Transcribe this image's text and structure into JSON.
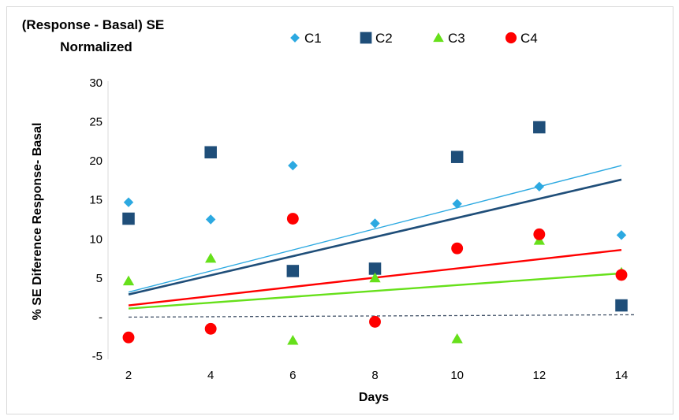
{
  "chart_data": {
    "type": "scatter",
    "title": "(Response - Basal) SE Normalized",
    "title_lines": [
      "(Response - Basal) SE",
      "Normalized"
    ],
    "xlabel": "Days",
    "ylabel": "% SE Diference Response- Basal",
    "xlim": [
      2,
      14
    ],
    "ylim": [
      -5,
      30
    ],
    "x_ticks": [
      2,
      4,
      6,
      8,
      10,
      12,
      14
    ],
    "y_ticks": [
      {
        "value": 30,
        "label": "30"
      },
      {
        "value": 25,
        "label": "25"
      },
      {
        "value": 20,
        "label": "20"
      },
      {
        "value": 15,
        "label": "15"
      },
      {
        "value": 10,
        "label": "10"
      },
      {
        "value": 5,
        "label": "5"
      },
      {
        "value": 0,
        "label": "-"
      },
      {
        "value": -5,
        "label": "-5"
      }
    ],
    "grid": false,
    "legend_position": "top",
    "baseline": {
      "y": 0,
      "style": "dashed",
      "color": "#44546a"
    },
    "series": [
      {
        "name": "C1",
        "marker": "diamond",
        "color": "#2ca9e1",
        "x": [
          2,
          4,
          6,
          8,
          10,
          12,
          14
        ],
        "y": [
          14.7,
          12.5,
          19.4,
          12.0,
          14.5,
          16.7,
          10.5
        ],
        "trendline": {
          "y_start": 3.2,
          "y_end": 19.4
        }
      },
      {
        "name": "C2",
        "marker": "square",
        "color": "#1f4e79",
        "x": [
          2,
          4,
          6,
          8,
          10,
          12,
          14
        ],
        "y": [
          12.6,
          21.1,
          5.9,
          6.2,
          20.5,
          24.3,
          1.5
        ],
        "trendline": {
          "y_start": 2.9,
          "y_end": 17.6
        }
      },
      {
        "name": "C3",
        "marker": "triangle",
        "color": "#66e01a",
        "x": [
          2,
          4,
          6,
          8,
          10,
          12,
          14
        ],
        "y": [
          4.6,
          7.5,
          -3.0,
          5.0,
          -2.8,
          9.8,
          5.7
        ],
        "trendline": {
          "y_start": 1.1,
          "y_end": 5.6
        }
      },
      {
        "name": "C4",
        "marker": "circle",
        "color": "#ff0000",
        "x": [
          2,
          4,
          6,
          8,
          10,
          12,
          14
        ],
        "y": [
          -2.6,
          -1.5,
          12.6,
          -0.6,
          8.8,
          10.6,
          5.4
        ],
        "trendline": {
          "y_start": 1.5,
          "y_end": 8.6
        }
      }
    ]
  }
}
